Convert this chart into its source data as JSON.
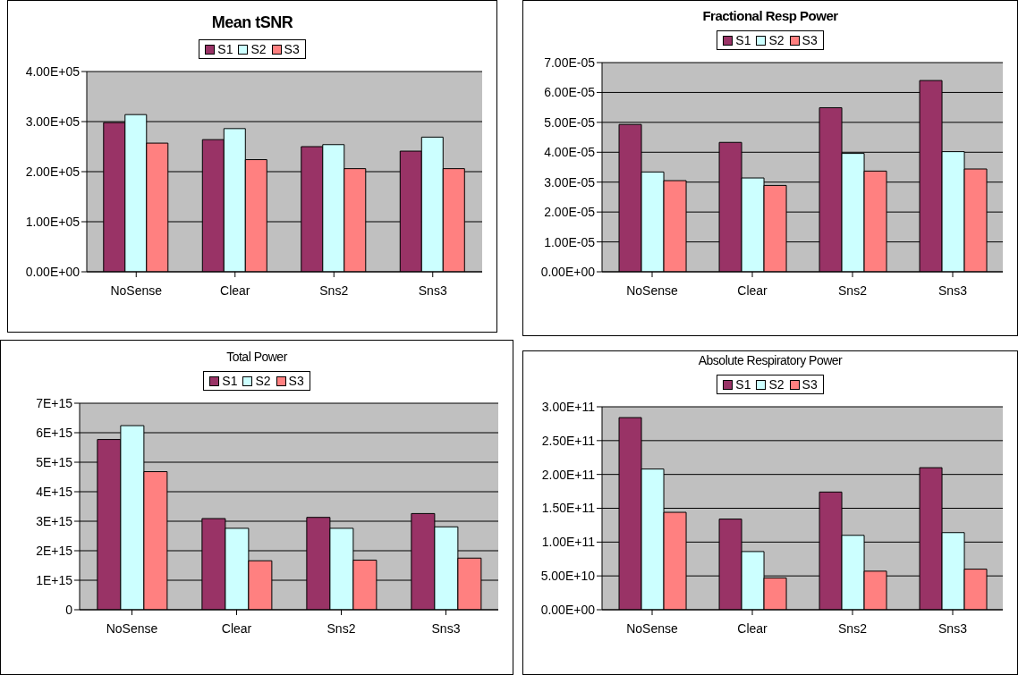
{
  "chart_data": [
    {
      "type": "bar",
      "title": "Mean tSNR",
      "categories": [
        "NoSense",
        "Clear",
        "Sns2",
        "Sns3"
      ],
      "series": [
        {
          "name": "S1",
          "color": "#993366",
          "values": [
            298000,
            264000,
            250000,
            241000
          ]
        },
        {
          "name": "S2",
          "color": "#ccffff",
          "values": [
            314000,
            286000,
            254000,
            269000
          ]
        },
        {
          "name": "S3",
          "color": "#ff8080",
          "values": [
            257000,
            224000,
            206000,
            206000
          ]
        }
      ],
      "ylim": [
        0,
        400000
      ],
      "yticks": [
        {
          "value": 0,
          "label": "0.00E+00"
        },
        {
          "value": 100000,
          "label": "1.00E+05"
        },
        {
          "value": 200000,
          "label": "2.00E+05"
        },
        {
          "value": 300000,
          "label": "3.00E+05"
        },
        {
          "value": 400000,
          "label": "4.00E+05"
        }
      ],
      "grid": "y",
      "legend": "top"
    },
    {
      "type": "bar",
      "title": "Fractional Resp Power",
      "categories": [
        "NoSense",
        "Clear",
        "Sns2",
        "Sns3"
      ],
      "series": [
        {
          "name": "S1",
          "color": "#993366",
          "values": [
            4.93e-05,
            4.33e-05,
            5.49e-05,
            6.4e-05
          ]
        },
        {
          "name": "S2",
          "color": "#ccffff",
          "values": [
            3.34e-05,
            3.14e-05,
            3.96e-05,
            4.02e-05
          ]
        },
        {
          "name": "S3",
          "color": "#ff8080",
          "values": [
            3.05e-05,
            2.89e-05,
            3.37e-05,
            3.44e-05
          ]
        }
      ],
      "ylim": [
        0,
        7e-05
      ],
      "yticks": [
        {
          "value": 0,
          "label": "0.00E+00"
        },
        {
          "value": 1e-05,
          "label": "1.00E-05"
        },
        {
          "value": 2e-05,
          "label": "2.00E-05"
        },
        {
          "value": 3e-05,
          "label": "3.00E-05"
        },
        {
          "value": 4e-05,
          "label": "4.00E-05"
        },
        {
          "value": 5e-05,
          "label": "5.00E-05"
        },
        {
          "value": 6e-05,
          "label": "6.00E-05"
        },
        {
          "value": 7e-05,
          "label": "7.00E-05"
        }
      ],
      "grid": "y",
      "legend": "top"
    },
    {
      "type": "bar",
      "title": "Total Power",
      "categories": [
        "NoSense",
        "Clear",
        "Sns2",
        "Sns3"
      ],
      "series": [
        {
          "name": "S1",
          "color": "#993366",
          "values": [
            5770000000000000.0,
            3090000000000000.0,
            3130000000000000.0,
            3260000000000000.0
          ]
        },
        {
          "name": "S2",
          "color": "#ccffff",
          "values": [
            6240000000000000.0,
            2760000000000000.0,
            2760000000000000.0,
            2810000000000000.0
          ]
        },
        {
          "name": "S3",
          "color": "#ff8080",
          "values": [
            4680000000000000.0,
            1660000000000000.0,
            1680000000000000.0,
            1750000000000000.0
          ]
        }
      ],
      "ylim": [
        0,
        7000000000000000.0
      ],
      "yticks": [
        0,
        {
          "value": 1000000000000000.0,
          "label": "1E+15"
        },
        {
          "value": 2000000000000000.0,
          "label": "2E+15"
        },
        {
          "value": 3000000000000000.0,
          "label": "3E+15"
        },
        {
          "value": 4000000000000000.0,
          "label": "4E+15"
        },
        {
          "value": 5000000000000000.0,
          "label": "5E+15"
        },
        {
          "value": 6000000000000000.0,
          "label": "6E+15"
        },
        {
          "value": 7000000000000000.0,
          "label": "7E+15"
        }
      ],
      "grid": "y",
      "legend": "top"
    },
    {
      "type": "bar",
      "title": "Absolute Respiratory Power",
      "categories": [
        "NoSense",
        "Clear",
        "Sns2",
        "Sns3"
      ],
      "series": [
        {
          "name": "S1",
          "color": "#993366",
          "values": [
            284000000000.0,
            134000000000.0,
            174000000000.0,
            210000000000.0
          ]
        },
        {
          "name": "S2",
          "color": "#ccffff",
          "values": [
            208000000000.0,
            86000000000.0,
            110000000000.0,
            114000000000.0
          ]
        },
        {
          "name": "S3",
          "color": "#ff8080",
          "values": [
            144000000000.0,
            47000000000.0,
            57000000000.0,
            60000000000.0
          ]
        }
      ],
      "ylim": [
        0,
        300000000000.0
      ],
      "yticks": [
        {
          "value": 0,
          "label": "0.00E+00"
        },
        {
          "value": 50000000000.0,
          "label": "5.00E+10"
        },
        {
          "value": 100000000000.0,
          "label": "1.00E+11"
        },
        {
          "value": 150000000000.0,
          "label": "1.50E+11"
        },
        {
          "value": 200000000000.0,
          "label": "2.00E+11"
        },
        {
          "value": 250000000000.0,
          "label": "2.50E+11"
        },
        {
          "value": 300000000000.0,
          "label": "3.00E+11"
        }
      ],
      "grid": "y",
      "legend": "top"
    }
  ]
}
